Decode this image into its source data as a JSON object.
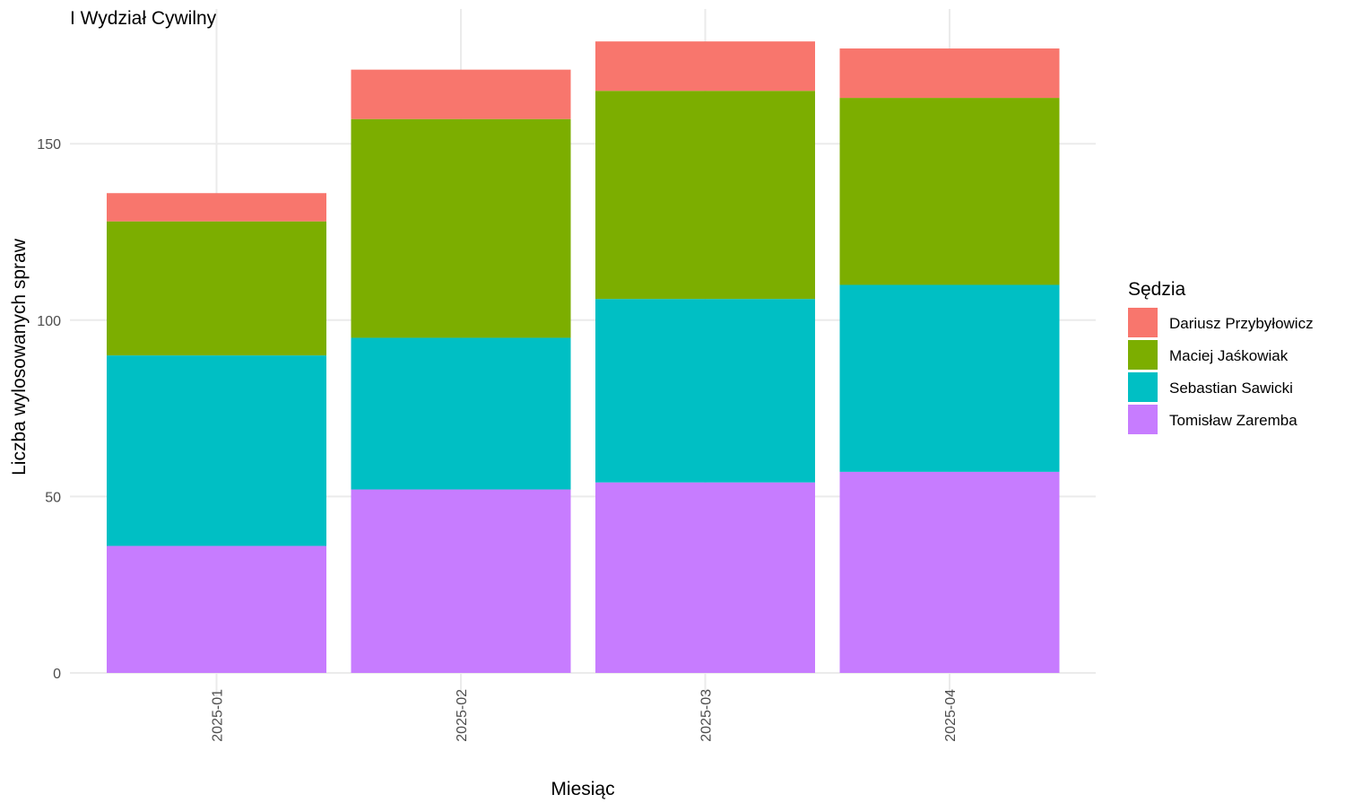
{
  "chart_data": {
    "type": "bar",
    "stacked": true,
    "title": "I Wydział Cywilny",
    "xlabel": "Miesiąc",
    "ylabel": "Liczba wylosowanych spraw",
    "categories": [
      "2025-01",
      "2025-02",
      "2025-03",
      "2025-04"
    ],
    "ylim": [
      0,
      188
    ],
    "yticks": [
      0,
      50,
      100,
      150
    ],
    "grid": true,
    "legend": {
      "title": "Sędzia",
      "placement": "right"
    },
    "series": [
      {
        "name": "Tomisław Zaremba",
        "color": "#C77CFF",
        "values": [
          36,
          52,
          54,
          57
        ]
      },
      {
        "name": "Sebastian Sawicki",
        "color": "#00BFC4",
        "values": [
          54,
          43,
          52,
          53
        ]
      },
      {
        "name": "Maciej Jaśkowiak",
        "color": "#7CAE00",
        "values": [
          38,
          62,
          59,
          53
        ]
      },
      {
        "name": "Dariusz Przybyłowicz",
        "color": "#F8766D",
        "values": [
          8,
          14,
          14,
          14
        ]
      }
    ],
    "legend_order": [
      "Dariusz Przybyłowicz",
      "Maciej Jaśkowiak",
      "Sebastian Sawicki",
      "Tomisław Zaremba"
    ]
  }
}
